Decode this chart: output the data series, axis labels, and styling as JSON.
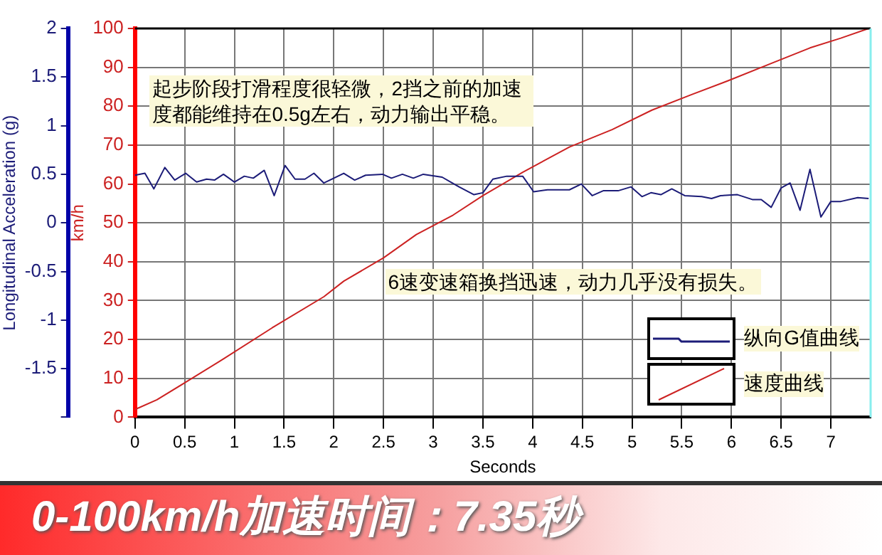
{
  "chart_data": {
    "type": "line",
    "title": "0-100km/h加速时间：7.35秒",
    "xlabel": "Seconds",
    "ylabel": "km/h",
    "y2label": "Longitudinal Acceleration (g)",
    "annotations": [
      "起步阶段打滑程度很轻微，2挡之前的加速度都能维持在0.5g左右，动力输出平稳。",
      "6速变速箱换挡迅速，动力几乎没有损失。"
    ],
    "xlim": [
      0,
      7.4
    ],
    "xticks": [
      0,
      0.5,
      1,
      1.5,
      2,
      2.5,
      3,
      3.5,
      4,
      4.5,
      5,
      5.5,
      6,
      6.5,
      7
    ],
    "ylim": [
      0,
      100
    ],
    "yticks": [
      0,
      10,
      20,
      30,
      40,
      50,
      60,
      70,
      80,
      90,
      100
    ],
    "y2lim": [
      -2,
      2
    ],
    "y2ticks": [
      {
        "value": -2,
        "label": null
      },
      -1.5,
      -1,
      -0.5,
      0,
      0.5,
      1,
      1.5,
      2
    ],
    "grid": true,
    "legend": "bottom right",
    "marker": "none",
    "line_style": "solid",
    "series": [
      {
        "name": "纵向G值曲线",
        "color": "#1c1c78",
        "axis": "y2",
        "x": [
          0,
          0.1,
          0.19,
          0.3,
          0.4,
          0.51,
          0.62,
          0.72,
          0.8,
          0.89,
          1,
          1.1,
          1.19,
          1.3,
          1.4,
          1.51,
          1.61,
          1.71,
          1.8,
          1.9,
          2.1,
          2.21,
          2.32,
          2.49,
          2.58,
          2.69,
          2.8,
          2.9,
          3.09,
          3.26,
          3.41,
          3.5,
          3.6,
          3.74,
          3.9,
          4.01,
          4.15,
          4.37,
          4.49,
          4.6,
          4.71,
          4.86,
          4.99,
          5.1,
          5.19,
          5.29,
          5.4,
          5.53,
          5.7,
          5.8,
          5.89,
          6.06,
          6.21,
          6.3,
          6.4,
          6.5,
          6.59,
          6.69,
          6.79,
          6.9,
          7,
          7.1,
          7.27,
          7.38
        ],
        "values": [
          0.49,
          0.51,
          0.35,
          0.57,
          0.44,
          0.51,
          0.42,
          0.45,
          0.44,
          0.5,
          0.42,
          0.48,
          0.46,
          0.54,
          0.28,
          0.59,
          0.45,
          0.45,
          0.51,
          0.41,
          0.51,
          0.44,
          0.49,
          0.5,
          0.46,
          0.5,
          0.46,
          0.5,
          0.47,
          0.37,
          0.29,
          0.31,
          0.45,
          0.48,
          0.48,
          0.32,
          0.34,
          0.34,
          0.4,
          0.28,
          0.33,
          0.33,
          0.37,
          0.27,
          0.31,
          0.29,
          0.35,
          0.28,
          0.27,
          0.25,
          0.28,
          0.29,
          0.24,
          0.24,
          0.16,
          0.36,
          0.41,
          0.13,
          0.55,
          0.06,
          0.22,
          0.22,
          0.26,
          0.25
        ]
      },
      {
        "name": "速度曲线",
        "color": "#cc2222",
        "axis": "y",
        "x": [
          0,
          0.22,
          0.51,
          0.89,
          1.38,
          1.9,
          2.1,
          2.5,
          2.83,
          3.2,
          3.5,
          3.9,
          4.37,
          4.8,
          5.2,
          5.6,
          5.97,
          6.4,
          6.79,
          7.1,
          7.38
        ],
        "values": [
          2,
          4.5,
          9,
          15,
          23,
          31,
          35,
          41,
          47,
          52,
          57,
          63,
          69.5,
          74,
          79,
          83,
          86.6,
          91,
          95,
          97.5,
          100
        ]
      }
    ]
  }
}
